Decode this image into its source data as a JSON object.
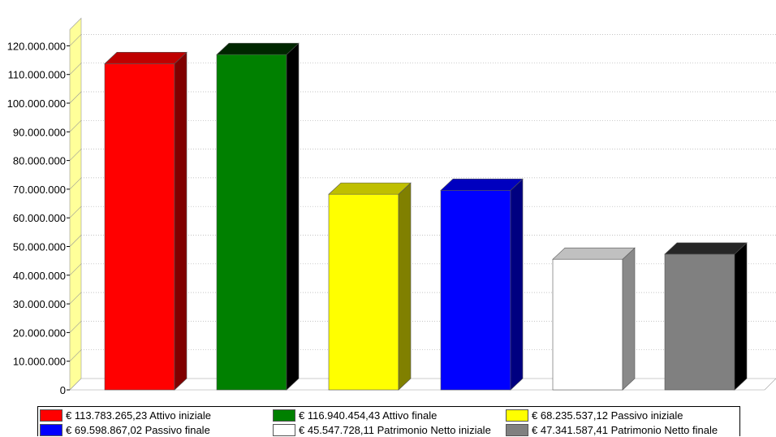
{
  "chart_data": {
    "type": "bar",
    "three_d": true,
    "categories": [
      "Attivo iniziale",
      "Attivo finale",
      "Passivo iniziale",
      "Passivo finale",
      "Patrimonio Netto iniziale",
      "Patrimonio Netto finale"
    ],
    "values": [
      113783265.23,
      116940454.43,
      68235537.12,
      69598867.02,
      45547728.11,
      47341587.41
    ],
    "colors": [
      "#ff0000",
      "#008000",
      "#ffff00",
      "#0000ff",
      "#ffffff",
      "#808080"
    ],
    "ylim": [
      0,
      120000000
    ],
    "yticks": [
      "0",
      "10.000.000",
      "20.000.000",
      "30.000.000",
      "40.000.000",
      "50.000.000",
      "60.000.000",
      "70.000.000",
      "80.000.000",
      "90.000.000",
      "100.000.000",
      "110.000.000",
      "120.000.000"
    ],
    "grid": true,
    "wall_color": "#ffff99",
    "legend": {
      "position": "bottom",
      "items": [
        {
          "label": "€  113.783.265,23 Attivo iniziale",
          "color": "#ff0000"
        },
        {
          "label": "€  116.940.454,43 Attivo finale",
          "color": "#008000"
        },
        {
          "label": "€  68.235.537,12 Passivo iniziale",
          "color": "#ffff00"
        },
        {
          "label": "€  69.598.867,02 Passivo finale",
          "color": "#0000ff"
        },
        {
          "label": "€  45.547.728,11 Patrimonio Netto iniziale",
          "color": "#ffffff"
        },
        {
          "label": "€  47.341.587,41 Patrimonio Netto finale",
          "color": "#808080"
        }
      ]
    }
  }
}
